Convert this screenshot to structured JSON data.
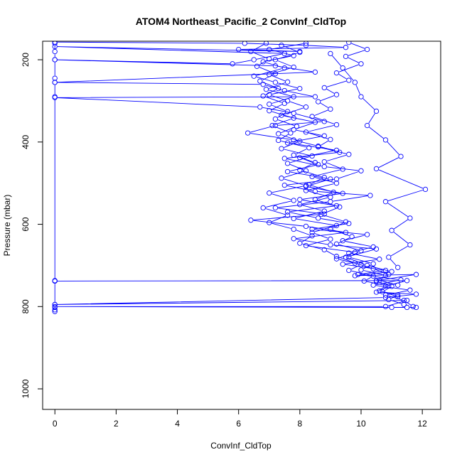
{
  "chart_data": {
    "type": "line",
    "title": "ATOM4 Northeast_Pacific_2 ConvInf_CldTop",
    "xlabel": "ConvInf_CldTop",
    "ylabel": "Pressure (mbar)",
    "xlim": [
      -0.4,
      12.6
    ],
    "ylim": [
      1050,
      155
    ],
    "y_reversed": true,
    "x_ticks": [
      0,
      2,
      4,
      6,
      8,
      10,
      12
    ],
    "y_ticks": [
      200,
      400,
      600,
      800,
      1000
    ],
    "grid": false,
    "legend": "none",
    "color": "#0000ff",
    "series": [
      {
        "values": [
          [
            0,
            157
          ],
          [
            6.2,
            160
          ],
          [
            8.2,
            165
          ],
          [
            9.5,
            170
          ],
          [
            6.0,
            175
          ],
          [
            8.0,
            180
          ],
          [
            0,
            168
          ],
          [
            7.5,
            185
          ],
          [
            6.5,
            200
          ],
          [
            5.8,
            210
          ],
          [
            0,
            200
          ],
          [
            7.2,
            215
          ],
          [
            8.5,
            230
          ],
          [
            0,
            255
          ],
          [
            6.8,
            260
          ],
          [
            7.5,
            275
          ],
          [
            8.5,
            290
          ],
          [
            0,
            292
          ],
          [
            6.7,
            315
          ],
          [
            7.8,
            330
          ],
          [
            8.8,
            350
          ],
          [
            7.2,
            360
          ],
          [
            6.3,
            378
          ],
          [
            7.8,
            395
          ],
          [
            8.6,
            410
          ],
          [
            9.3,
            425
          ],
          [
            7.5,
            440
          ],
          [
            8.8,
            460
          ],
          [
            10.0,
            470
          ],
          [
            9.2,
            490
          ],
          [
            7.5,
            505
          ],
          [
            8.5,
            520
          ],
          [
            10.3,
            530
          ],
          [
            9.0,
            545
          ],
          [
            7.2,
            560
          ],
          [
            8.8,
            575
          ],
          [
            6.4,
            590
          ],
          [
            8.2,
            605
          ],
          [
            9.5,
            620
          ],
          [
            7.8,
            635
          ],
          [
            9.0,
            650
          ],
          [
            10.5,
            660
          ],
          [
            9.5,
            680
          ],
          [
            10.2,
            700
          ],
          [
            11.0,
            715
          ],
          [
            9.8,
            725
          ],
          [
            11.8,
            722
          ],
          [
            10.5,
            737
          ],
          [
            0,
            738
          ],
          [
            11.5,
            737
          ],
          [
            10.8,
            750
          ],
          [
            10.5,
            765
          ],
          [
            11.8,
            770
          ],
          [
            10.8,
            778
          ],
          [
            0,
            795
          ],
          [
            11.5,
            785
          ],
          [
            10.8,
            800
          ],
          [
            0,
            800
          ],
          [
            11.0,
            802
          ],
          [
            11.5,
            802
          ],
          [
            11.8,
            802
          ]
        ]
      },
      {
        "values": [
          [
            8.2,
            160
          ],
          [
            7.0,
            175
          ],
          [
            7.8,
            190
          ],
          [
            6.8,
            205
          ],
          [
            7.5,
            220
          ],
          [
            6.5,
            240
          ],
          [
            7.2,
            255
          ],
          [
            8.0,
            270
          ],
          [
            7.0,
            285
          ],
          [
            7.6,
            300
          ],
          [
            8.2,
            315
          ],
          [
            7.4,
            335
          ],
          [
            8.5,
            352
          ],
          [
            7.8,
            370
          ],
          [
            8.8,
            385
          ],
          [
            7.6,
            402
          ],
          [
            9.2,
            420
          ],
          [
            8.0,
            438
          ],
          [
            8.6,
            455
          ],
          [
            7.6,
            472
          ],
          [
            9.0,
            490
          ],
          [
            8.2,
            508
          ],
          [
            9.4,
            525
          ],
          [
            8.0,
            540
          ],
          [
            9.2,
            555
          ],
          [
            7.6,
            570
          ],
          [
            8.6,
            585
          ],
          [
            9.6,
            598
          ],
          [
            8.4,
            612
          ],
          [
            10.2,
            625
          ],
          [
            9.4,
            640
          ],
          [
            10.4,
            655
          ],
          [
            9.6,
            670
          ],
          [
            10.6,
            685
          ],
          [
            9.4,
            697
          ],
          [
            10.8,
            712
          ],
          [
            9.9,
            722
          ],
          [
            11.3,
            735
          ],
          [
            10.4,
            748
          ],
          [
            11.6,
            760
          ],
          [
            10.8,
            772
          ],
          [
            11.4,
            785
          ],
          [
            11.7,
            800
          ]
        ]
      },
      {
        "values": [
          [
            9.6,
            158
          ],
          [
            10.2,
            175
          ],
          [
            9.5,
            192
          ],
          [
            10.0,
            210
          ],
          [
            9.2,
            232
          ],
          [
            9.6,
            250
          ],
          [
            8.8,
            268
          ],
          [
            9.2,
            285
          ],
          [
            8.6,
            302
          ],
          [
            9.0,
            320
          ],
          [
            8.4,
            338
          ],
          [
            9.2,
            358
          ],
          [
            8.2,
            376
          ],
          [
            9.0,
            394
          ],
          [
            8.6,
            412
          ],
          [
            9.6,
            430
          ],
          [
            8.8,
            448
          ],
          [
            9.4,
            466
          ],
          [
            8.4,
            484
          ],
          [
            9.2,
            500
          ],
          [
            8.2,
            518
          ],
          [
            9.0,
            534
          ],
          [
            8.0,
            552
          ],
          [
            8.8,
            568
          ],
          [
            7.8,
            586
          ],
          [
            9.2,
            603
          ],
          [
            8.4,
            620
          ],
          [
            9.0,
            636
          ],
          [
            8.2,
            652
          ],
          [
            9.8,
            668
          ],
          [
            9.2,
            684
          ],
          [
            10.0,
            698
          ],
          [
            9.6,
            712
          ],
          [
            10.4,
            726
          ],
          [
            10.1,
            738
          ],
          [
            10.9,
            750
          ],
          [
            10.6,
            762
          ],
          [
            11.2,
            772
          ],
          [
            10.9,
            783
          ],
          [
            11.4,
            795
          ]
        ]
      },
      {
        "values": [
          [
            7.4,
            165
          ],
          [
            8.0,
            182
          ],
          [
            7.2,
            200
          ],
          [
            7.8,
            218
          ],
          [
            7.0,
            236
          ],
          [
            7.6,
            254
          ],
          [
            6.9,
            272
          ],
          [
            7.8,
            290
          ],
          [
            7.0,
            308
          ],
          [
            7.6,
            326
          ],
          [
            7.2,
            344
          ],
          [
            7.9,
            362
          ],
          [
            7.3,
            380
          ],
          [
            8.0,
            398
          ],
          [
            7.4,
            416
          ],
          [
            8.4,
            434
          ],
          [
            7.6,
            452
          ],
          [
            8.2,
            470
          ],
          [
            7.4,
            488
          ],
          [
            8.2,
            506
          ],
          [
            7.0,
            524
          ],
          [
            7.8,
            542
          ],
          [
            6.8,
            560
          ],
          [
            7.6,
            578
          ],
          [
            7.0,
            596
          ],
          [
            7.8,
            612
          ],
          [
            8.4,
            628
          ],
          [
            8.0,
            646
          ],
          [
            8.8,
            662
          ],
          [
            9.2,
            678
          ],
          [
            9.8,
            694
          ],
          [
            10.4,
            708
          ],
          [
            10.9,
            722
          ],
          [
            10.6,
            736
          ],
          [
            11.2,
            748
          ]
        ]
      },
      {
        "values": [
          [
            6.9,
            160
          ],
          [
            6.4,
            180
          ],
          [
            7.0,
            198
          ],
          [
            6.6,
            216
          ],
          [
            7.2,
            234
          ],
          [
            6.7,
            252
          ],
          [
            7.3,
            270
          ],
          [
            6.8,
            288
          ],
          [
            7.5,
            306
          ],
          [
            7.0,
            324
          ],
          [
            7.8,
            342
          ],
          [
            7.1,
            360
          ],
          [
            7.7,
            378
          ],
          [
            7.3,
            396
          ],
          [
            8.3,
            414
          ],
          [
            7.8,
            432
          ],
          [
            8.5,
            450
          ],
          [
            8.0,
            468
          ],
          [
            8.8,
            486
          ],
          [
            8.3,
            504
          ],
          [
            9.1,
            522
          ],
          [
            8.5,
            540
          ],
          [
            9.3,
            558
          ],
          [
            8.7,
            576
          ],
          [
            9.5,
            594
          ],
          [
            9.0,
            612
          ],
          [
            9.7,
            630
          ],
          [
            9.2,
            648
          ],
          [
            10.0,
            664
          ],
          [
            9.6,
            680
          ],
          [
            10.4,
            696
          ],
          [
            10.0,
            711
          ],
          [
            10.8,
            724
          ],
          [
            10.5,
            738
          ],
          [
            11.0,
            751
          ],
          [
            10.7,
            764
          ],
          [
            11.2,
            776
          ]
        ]
      },
      {
        "values": [
          [
            9.0,
            185
          ],
          [
            9.4,
            220
          ],
          [
            9.8,
            255
          ],
          [
            10.0,
            290
          ],
          [
            10.5,
            325
          ],
          [
            10.2,
            360
          ],
          [
            10.8,
            395
          ],
          [
            11.3,
            435
          ],
          [
            10.5,
            465
          ],
          [
            12.1,
            515
          ],
          [
            10.8,
            545
          ],
          [
            11.6,
            585
          ],
          [
            11.0,
            615
          ],
          [
            11.6,
            650
          ],
          [
            10.9,
            680
          ],
          [
            11.2,
            705
          ]
        ]
      },
      {
        "values": [
          [
            0,
            160
          ],
          [
            0,
            180
          ],
          [
            0,
            200
          ],
          [
            0,
            245
          ],
          [
            0,
            255
          ],
          [
            0,
            290
          ],
          [
            0,
            737
          ],
          [
            0,
            738
          ],
          [
            0,
            795
          ],
          [
            0,
            802
          ],
          [
            0,
            808
          ],
          [
            0,
            812
          ]
        ]
      }
    ]
  }
}
